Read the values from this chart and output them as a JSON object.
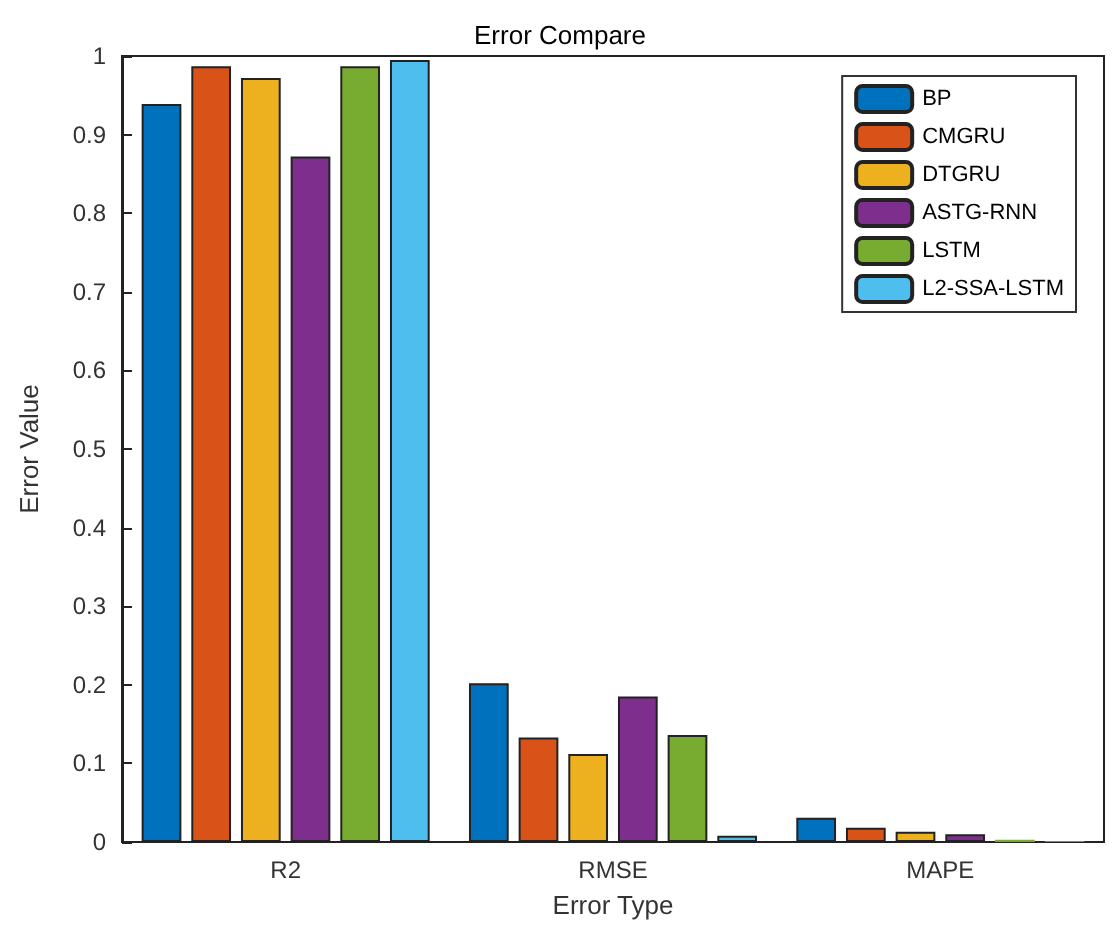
{
  "chart_data": {
    "type": "bar",
    "title": "Error Compare",
    "xlabel": "Error Type",
    "ylabel": "Error Value",
    "categories": [
      "R2",
      "RMSE",
      "MAPE"
    ],
    "series": [
      {
        "name": "BP",
        "color": "#0072bd",
        "values": [
          0.939,
          0.202,
          0.031
        ]
      },
      {
        "name": "CMGRU",
        "color": "#d95319",
        "values": [
          0.987,
          0.133,
          0.018
        ]
      },
      {
        "name": "DTGRU",
        "color": "#edb120",
        "values": [
          0.972,
          0.112,
          0.013
        ]
      },
      {
        "name": "ASTG-RNN",
        "color": "#7e2f8e",
        "values": [
          0.872,
          0.185,
          0.01
        ]
      },
      {
        "name": "LSTM",
        "color": "#77ac30",
        "values": [
          0.987,
          0.136,
          0.003
        ]
      },
      {
        "name": "L2-SSA-LSTM",
        "color": "#4dbeee",
        "values": [
          0.995,
          0.008,
          0.001
        ]
      }
    ],
    "ylim": [
      0,
      1
    ],
    "yticks": [
      0,
      0.1,
      0.2,
      0.3,
      0.4,
      0.5,
      0.6,
      0.7,
      0.8,
      0.9,
      1
    ],
    "grid": false,
    "legend": "top right"
  }
}
